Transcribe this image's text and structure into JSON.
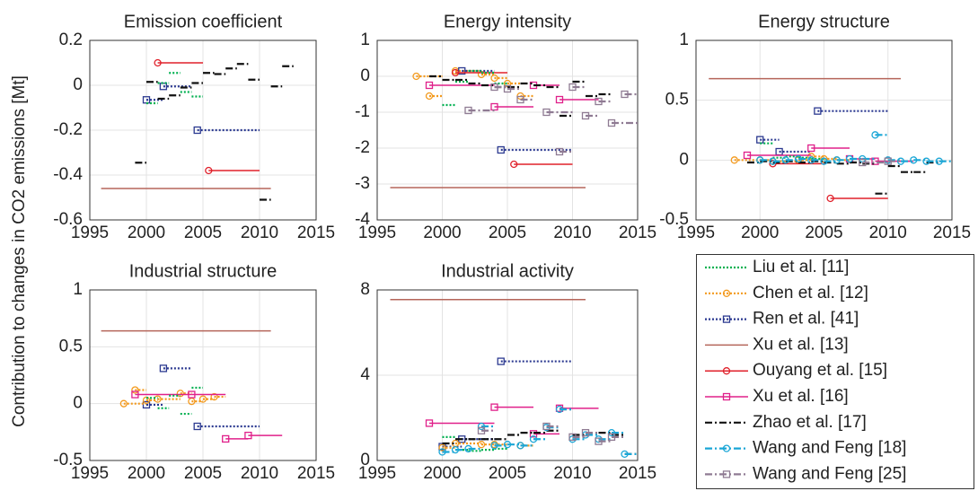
{
  "ylabel": "Contribution to changes in CO2 emissions [Mt]",
  "legend": {
    "entries": [
      {
        "name": "Liu et al. [11]",
        "color": "#00b050",
        "marker": "none",
        "dash": "dotted"
      },
      {
        "name": "Chen et al. [12]",
        "color": "#f39a1e",
        "marker": "circle",
        "dash": "dotted"
      },
      {
        "name": "Ren et al. [41]",
        "color": "#2b3990",
        "marker": "square",
        "dash": "dotted"
      },
      {
        "name": "Xu et al. [13]",
        "color": "#b5655a",
        "marker": "none",
        "dash": "solid"
      },
      {
        "name": "Ouyang et al. [15]",
        "color": "#e0202a",
        "marker": "circle",
        "dash": "solid"
      },
      {
        "name": "Xu et al. [16]",
        "color": "#e0208a",
        "marker": "square",
        "dash": "solid"
      },
      {
        "name": "Zhao et al. [17]",
        "color": "#111111",
        "marker": "none",
        "dash": "dashdot"
      },
      {
        "name": "Wang and Feng [18]",
        "color": "#1aa6d6",
        "marker": "circle",
        "dash": "dashdot"
      },
      {
        "name": "Wang and Feng [25]",
        "color": "#8f7b93",
        "marker": "square",
        "dash": "dashdot"
      }
    ]
  },
  "chart_data": [
    {
      "type": "segment",
      "title": "Emission coefficient",
      "xlim": [
        1995,
        2015
      ],
      "xticks": [
        1995,
        2000,
        2005,
        2010,
        2015
      ],
      "ylim": [
        -0.6,
        0.2
      ],
      "yticks": [
        -0.6,
        -0.4,
        -0.2,
        0,
        0.2
      ],
      "grid": true,
      "series": [
        {
          "name": "Xu et al. [13]",
          "x_start": [
            1996
          ],
          "x_end": [
            2011
          ],
          "values": [
            -0.46
          ]
        },
        {
          "name": "Ouyang et al. [15]",
          "x_start": [
            2001,
            2005.5
          ],
          "x_end": [
            2005,
            2010
          ],
          "values": [
            0.1,
            -0.38
          ]
        },
        {
          "name": "Ren et al. [41]",
          "x_start": [
            2000,
            2001.5,
            2004.5
          ],
          "x_end": [
            2001.5,
            2004,
            2010
          ],
          "values": [
            -0.065,
            -0.005,
            -0.2
          ]
        },
        {
          "name": "Liu et al. [11]",
          "x_start": [
            2000,
            2001,
            2002,
            2003,
            2004
          ],
          "x_end": [
            2001,
            2002,
            2003,
            2004,
            2005
          ],
          "values": [
            -0.08,
            0.01,
            0.055,
            -0.03,
            -0.05
          ]
        },
        {
          "name": "Zhao et al. [17]",
          "x_start": [
            1999,
            2000,
            2001,
            2002,
            2003,
            2004,
            2005,
            2006,
            2007,
            2008,
            2009,
            2010,
            2011,
            2012
          ],
          "x_end": [
            2000,
            2001,
            2002,
            2003,
            2004,
            2005,
            2006,
            2007,
            2008,
            2009,
            2010,
            2011,
            2012,
            2013
          ],
          "values": [
            -0.345,
            0.015,
            -0.06,
            -0.045,
            -0.01,
            0.01,
            0.055,
            0.05,
            0.075,
            0.095,
            0.025,
            -0.51,
            -0.005,
            0.085
          ]
        }
      ]
    },
    {
      "type": "segment",
      "title": "Energy intensity",
      "xlim": [
        1995,
        2015
      ],
      "xticks": [
        1995,
        2000,
        2005,
        2010,
        2015
      ],
      "ylim": [
        -4,
        1
      ],
      "yticks": [
        -4,
        -3,
        -2,
        -1,
        0,
        1
      ],
      "grid": true,
      "series": [
        {
          "name": "Xu et al. [13]",
          "x_start": [
            1996
          ],
          "x_end": [
            2011
          ],
          "values": [
            -3.1
          ]
        },
        {
          "name": "Chen et al. [12]",
          "x_start": [
            1998,
            1999,
            2001,
            2003,
            2004,
            2005,
            2006
          ],
          "x_end": [
            2000,
            2000,
            2003,
            2004,
            2005,
            2006,
            2007
          ],
          "values": [
            0,
            -0.55,
            0.15,
            0.05,
            -0.05,
            -0.2,
            -0.55
          ]
        },
        {
          "name": "Ren et al. [41]",
          "x_start": [
            2001.5,
            2004.5
          ],
          "x_end": [
            2004,
            2010
          ],
          "values": [
            0.15,
            -2.05
          ]
        },
        {
          "name": "Ouyang et al. [15]",
          "x_start": [
            2001,
            2005.5
          ],
          "x_end": [
            2005,
            2010
          ],
          "values": [
            0.1,
            -2.45
          ]
        },
        {
          "name": "Xu et al. [16]",
          "x_start": [
            1999,
            2004,
            2007,
            2009
          ],
          "x_end": [
            2004,
            2007,
            2009,
            2012
          ],
          "values": [
            -0.25,
            -0.85,
            -0.25,
            -0.65
          ]
        },
        {
          "name": "Liu et al. [11]",
          "x_start": [
            2000,
            2001,
            2002,
            2003,
            2004
          ],
          "x_end": [
            2001,
            2002,
            2003,
            2004,
            2005
          ],
          "values": [
            -0.8,
            -0.15,
            0.15,
            0.1,
            -0.2
          ]
        },
        {
          "name": "Zhao et al. [17]",
          "x_start": [
            1999,
            2000,
            2001,
            2002,
            2003,
            2004,
            2005,
            2006,
            2007,
            2008,
            2009,
            2010,
            2011,
            2012
          ],
          "x_end": [
            2000,
            2001,
            2002,
            2003,
            2004,
            2005,
            2006,
            2007,
            2008,
            2009,
            2010,
            2011,
            2012,
            2013
          ],
          "values": [
            0,
            -0.1,
            -0.1,
            -0.2,
            -0.25,
            -0.3,
            -0.3,
            -0.2,
            -0.25,
            -0.3,
            -1.1,
            -0.15,
            -0.55,
            -0.5
          ]
        },
        {
          "name": "Wang and Feng [25]",
          "x_start": [
            2002,
            2004,
            2005,
            2006,
            2008,
            2009,
            2010,
            2011,
            2012,
            2013,
            2014
          ],
          "x_end": [
            2004,
            2005,
            2006,
            2007,
            2010,
            2010,
            2011,
            2012,
            2013,
            2015,
            2015
          ],
          "values": [
            -0.95,
            -0.3,
            -0.35,
            -0.65,
            -1.0,
            -2.1,
            -0.3,
            -1.1,
            -0.7,
            -1.3,
            -0.5
          ]
        }
      ]
    },
    {
      "type": "segment",
      "title": "Energy structure",
      "xlim": [
        1995,
        2015
      ],
      "xticks": [
        1995,
        2000,
        2005,
        2010,
        2015
      ],
      "ylim": [
        -0.5,
        1
      ],
      "yticks": [
        -0.5,
        0,
        0.5,
        1
      ],
      "grid": true,
      "series": [
        {
          "name": "Xu et al. [13]",
          "x_start": [
            1996
          ],
          "x_end": [
            2011
          ],
          "values": [
            0.68
          ]
        },
        {
          "name": "Ren et al. [41]",
          "x_start": [
            2000,
            2001.5,
            2004.5
          ],
          "x_end": [
            2001.5,
            2004,
            2010
          ],
          "values": [
            0.17,
            0.07,
            0.41
          ]
        },
        {
          "name": "Chen et al. [12]",
          "x_start": [
            1998,
            2000,
            2001,
            2003,
            2004,
            2005,
            2006
          ],
          "x_end": [
            2000,
            2001,
            2003,
            2004,
            2005,
            2006,
            2007
          ],
          "values": [
            0,
            0,
            -0.01,
            0,
            0.03,
            0.01,
            0
          ]
        },
        {
          "name": "Ouyang et al. [15]",
          "x_start": [
            2001,
            2005.5
          ],
          "x_end": [
            2005,
            2010
          ],
          "values": [
            -0.03,
            -0.32
          ]
        },
        {
          "name": "Xu et al. [16]",
          "x_start": [
            1999,
            2004,
            2007,
            2009
          ],
          "x_end": [
            2004,
            2007,
            2009,
            2012
          ],
          "values": [
            0.04,
            0.1,
            0.01,
            -0.01
          ]
        },
        {
          "name": "Liu et al. [11]",
          "x_start": [
            2000,
            2001,
            2002,
            2003,
            2004
          ],
          "x_end": [
            2001,
            2002,
            2003,
            2004,
            2005
          ],
          "values": [
            0.14,
            0.02,
            0.03,
            0.02,
            0.01
          ]
        },
        {
          "name": "Zhao et al. [17]",
          "x_start": [
            1999,
            2000,
            2001,
            2002,
            2003,
            2004,
            2005,
            2006,
            2007,
            2008,
            2009,
            2010,
            2011,
            2012,
            2013
          ],
          "x_end": [
            2000,
            2001,
            2002,
            2003,
            2004,
            2005,
            2006,
            2007,
            2008,
            2009,
            2010,
            2011,
            2012,
            2013,
            2014
          ],
          "values": [
            -0.02,
            -0.01,
            -0.02,
            -0.01,
            -0.02,
            -0.01,
            -0.02,
            -0.03,
            -0.02,
            -0.03,
            -0.28,
            -0.05,
            -0.1,
            -0.1,
            -0.02
          ]
        },
        {
          "name": "Wang and Feng [18]",
          "x_start": [
            2000,
            2001,
            2002,
            2003,
            2004,
            2005,
            2006,
            2007,
            2008,
            2009,
            2010,
            2011,
            2012,
            2013,
            2014
          ],
          "x_end": [
            2001,
            2002,
            2003,
            2004,
            2005,
            2006,
            2007,
            2008,
            2009,
            2010,
            2011,
            2012,
            2013,
            2014,
            2015
          ],
          "values": [
            0,
            -0.01,
            0,
            0.01,
            0,
            -0.01,
            0,
            0.01,
            0.01,
            0.21,
            0,
            -0.01,
            0,
            -0.01,
            -0.01
          ]
        },
        {
          "name": "Wang and Feng [25]",
          "x_start": [
            2008,
            2010
          ],
          "x_end": [
            2010,
            2011
          ],
          "values": [
            -0.02,
            -0.01
          ]
        }
      ]
    },
    {
      "type": "segment",
      "title": "Industrial structure",
      "xlim": [
        1995,
        2015
      ],
      "xticks": [
        1995,
        2000,
        2005,
        2010,
        2015
      ],
      "ylim": [
        -0.5,
        1
      ],
      "yticks": [
        -0.5,
        0,
        0.5,
        1
      ],
      "grid": true,
      "series": [
        {
          "name": "Xu et al. [13]",
          "x_start": [
            1996
          ],
          "x_end": [
            2011
          ],
          "values": [
            0.64
          ]
        },
        {
          "name": "Ren et al. [41]",
          "x_start": [
            2000,
            2001.5,
            2004.5
          ],
          "x_end": [
            2001.5,
            2004,
            2010
          ],
          "values": [
            -0.01,
            0.31,
            -0.2
          ]
        },
        {
          "name": "Chen et al. [12]",
          "x_start": [
            1998,
            1999,
            2000,
            2001,
            2003,
            2004,
            2005,
            2006
          ],
          "x_end": [
            2000,
            2000,
            2001,
            2003,
            2004,
            2005,
            2006,
            2007
          ],
          "values": [
            0,
            0.12,
            0.03,
            0.04,
            0.09,
            0.02,
            0.04,
            0.06
          ]
        },
        {
          "name": "Xu et al. [16]",
          "x_start": [
            1999,
            2004,
            2007,
            2009
          ],
          "x_end": [
            2004,
            2007,
            2009,
            2012
          ],
          "values": [
            0.08,
            0.08,
            -0.31,
            -0.28
          ]
        },
        {
          "name": "Liu et al. [11]",
          "x_start": [
            2000,
            2001,
            2002,
            2003,
            2004
          ],
          "x_end": [
            2001,
            2002,
            2003,
            2004,
            2005
          ],
          "values": [
            0.05,
            -0.04,
            0.07,
            -0.09,
            0.14
          ]
        }
      ]
    },
    {
      "type": "segment",
      "title": "Industrial activity",
      "xlim": [
        1995,
        2015
      ],
      "xticks": [
        1995,
        2000,
        2005,
        2010,
        2015
      ],
      "ylim": [
        0,
        8
      ],
      "yticks": [
        0,
        4,
        8
      ],
      "grid": true,
      "series": [
        {
          "name": "Xu et al. [13]",
          "x_start": [
            1996
          ],
          "x_end": [
            2011
          ],
          "values": [
            7.55
          ]
        },
        {
          "name": "Ren et al. [41]",
          "x_start": [
            2000,
            2001.5,
            2004.5
          ],
          "x_end": [
            2001.5,
            2004,
            2010
          ],
          "values": [
            0.65,
            1.0,
            4.65
          ]
        },
        {
          "name": "Xu et al. [16]",
          "x_start": [
            1999,
            2004,
            2007,
            2009
          ],
          "x_end": [
            2004,
            2007,
            2009,
            2012
          ],
          "values": [
            1.75,
            2.5,
            1.25,
            2.45
          ]
        },
        {
          "name": "Liu et al. [11]",
          "x_start": [
            2000,
            2001,
            2002,
            2003,
            2004
          ],
          "x_end": [
            2001,
            2002,
            2003,
            2004,
            2005
          ],
          "values": [
            1.1,
            0.5,
            0.45,
            0.5,
            0.55
          ]
        },
        {
          "name": "Chen et al. [12]",
          "x_start": [
            2000,
            2001,
            2003,
            2004,
            2006
          ],
          "x_end": [
            2001,
            2003,
            2004,
            2005,
            2007
          ],
          "values": [
            0.6,
            0.8,
            0.75,
            0.75,
            0.7
          ]
        },
        {
          "name": "Zhao et al. [17]",
          "x_start": [
            2000,
            2001,
            2002,
            2003,
            2004,
            2005,
            2006,
            2007,
            2008,
            2009,
            2010,
            2011,
            2012,
            2013,
            2014
          ],
          "x_end": [
            2001,
            2002,
            2003,
            2004,
            2005,
            2006,
            2007,
            2008,
            2009,
            2010,
            2011,
            2012,
            2013,
            2014,
            2015
          ],
          "values": [
            0.8,
            1.0,
            1.0,
            1.0,
            1.0,
            1.2,
            1.3,
            1.3,
            1.4,
            2.4,
            1.2,
            1.3,
            1.3,
            1.2,
            0.3
          ]
        },
        {
          "name": "Wang and Feng [18]",
          "x_start": [
            2000,
            2001,
            2002,
            2003,
            2004,
            2005,
            2006,
            2007,
            2008,
            2009,
            2010,
            2011,
            2012,
            2013,
            2014
          ],
          "x_end": [
            2001,
            2002,
            2003,
            2004,
            2005,
            2006,
            2007,
            2008,
            2009,
            2010,
            2011,
            2012,
            2013,
            2014,
            2015
          ],
          "values": [
            0.4,
            0.5,
            0.55,
            1.6,
            0.7,
            0.75,
            0.7,
            1.0,
            1.55,
            2.4,
            1.0,
            1.2,
            1.0,
            1.3,
            0.3
          ]
        },
        {
          "name": "Wang and Feng [25]",
          "x_start": [
            2003,
            2008,
            2010,
            2011,
            2012,
            2013
          ],
          "x_end": [
            2004,
            2009,
            2011,
            2012,
            2013,
            2014
          ],
          "values": [
            1.4,
            1.6,
            1.1,
            1.3,
            0.9,
            1.1
          ]
        }
      ]
    }
  ]
}
